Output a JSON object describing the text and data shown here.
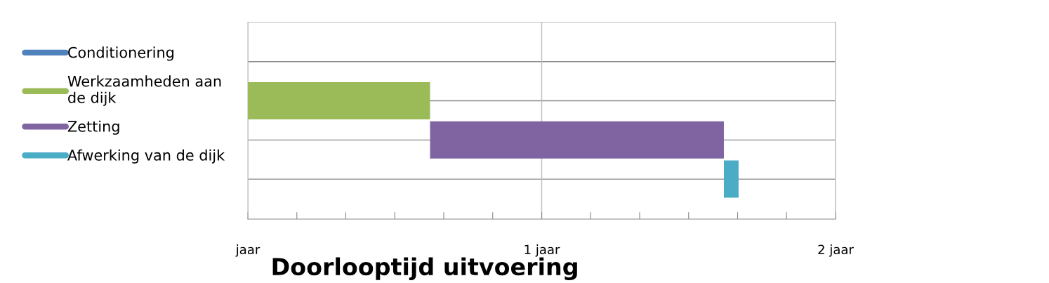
{
  "chart_data": {
    "type": "bar",
    "orientation": "horizontal",
    "title": "Doorlooptijd uitvoering",
    "categories": [
      null,
      null,
      null,
      null
    ],
    "series": [
      {
        "name": "Conditionering",
        "color": "#4f81bd",
        "base": [
          null,
          null,
          null,
          null
        ],
        "values": [
          null,
          null,
          null,
          null
        ]
      },
      {
        "name": "Werkzaamheden aan de dijk",
        "color": "#9bbb59",
        "base": [
          null,
          0,
          null,
          null
        ],
        "values": [
          null,
          0.62,
          null,
          null
        ]
      },
      {
        "name": "Zetting",
        "color": "#8064a2",
        "base": [
          null,
          null,
          0.62,
          null
        ],
        "values": [
          null,
          null,
          1.0,
          null
        ]
      },
      {
        "name": "Afwerking van de dijk",
        "color": "#4bacc6",
        "base": [
          null,
          null,
          null,
          1.62
        ],
        "values": [
          null,
          null,
          null,
          0.05
        ]
      }
    ],
    "xlim": [
      0,
      2
    ],
    "xticks": [
      {
        "value": 0,
        "label": "jaar"
      },
      {
        "value": 0.1667,
        "label": null
      },
      {
        "value": 0.3333,
        "label": null
      },
      {
        "value": 0.5,
        "label": null
      },
      {
        "value": 0.6667,
        "label": null
      },
      {
        "value": 0.8333,
        "label": null
      },
      {
        "value": 1,
        "label": "1 jaar"
      },
      {
        "value": 1.1667,
        "label": null
      },
      {
        "value": 1.3333,
        "label": null
      },
      {
        "value": 1.5,
        "label": null
      },
      {
        "value": 1.6667,
        "label": null
      },
      {
        "value": 1.8333,
        "label": null
      },
      {
        "value": 2,
        "label": "2 jaar"
      }
    ],
    "grid": true,
    "legend": "left"
  }
}
